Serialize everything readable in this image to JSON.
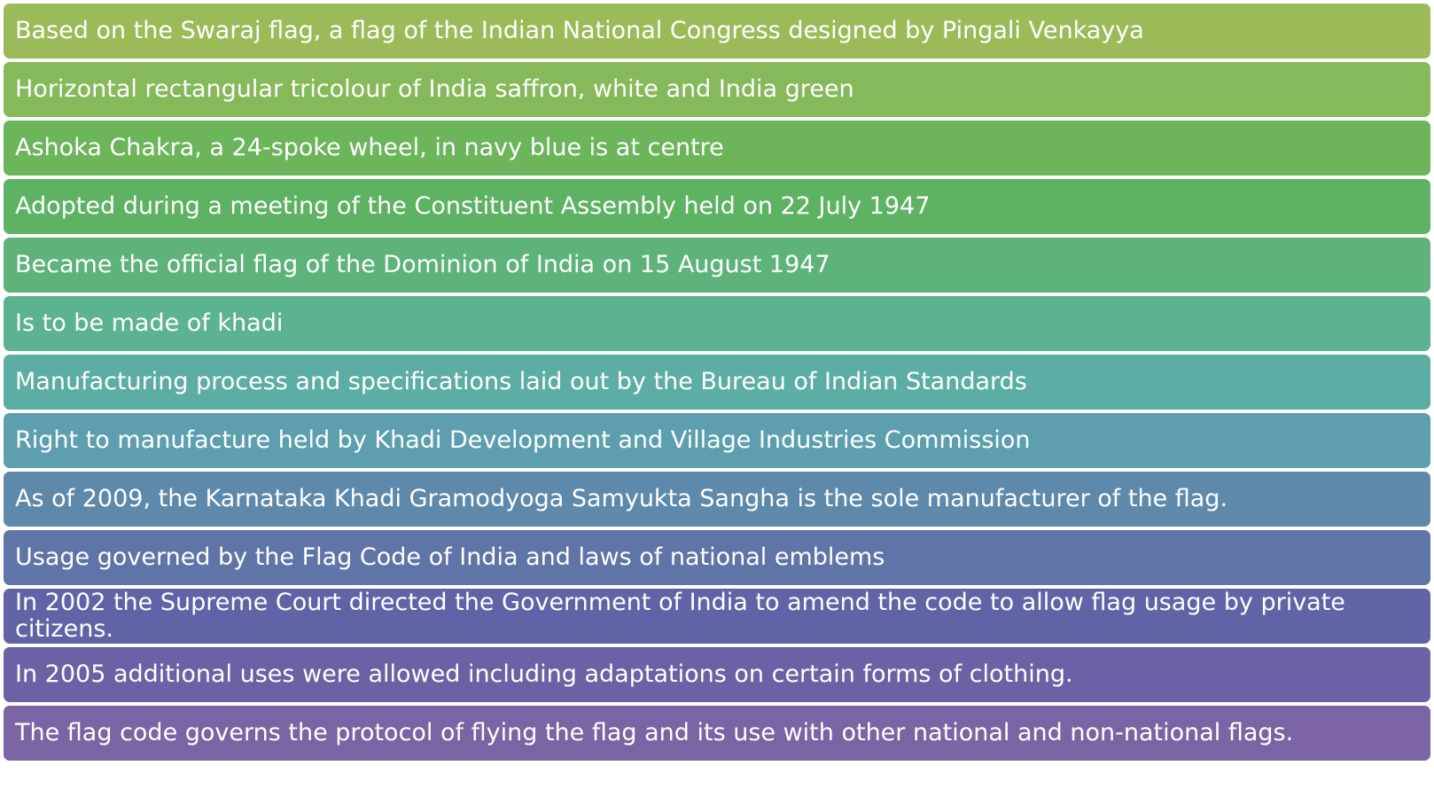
{
  "items": [
    {
      "text": "Based on the Swaraj flag, a flag of the Indian National Congress designed by Pingali Venkayya",
      "color": "#9bbb59"
    },
    {
      "text": "Horizontal rectangular tricolour of India saffron, white and India green",
      "color": "#85b95a"
    },
    {
      "text": "Ashoka Chakra, a 24-spoke wheel, in navy blue is at centre",
      "color": "#6cb55b"
    },
    {
      "text": "Adopted during a meeting of the Constituent Assembly held on 22 July 1947",
      "color": "#5db363"
    },
    {
      "text": "Became the official flag of the Dominion of India on 15 August 1947",
      "color": "#5db37a"
    },
    {
      "text": "Is to be made of khadi",
      "color": "#5cb38f"
    },
    {
      "text": "Manufacturing process and specifications laid out by the Bureau of Indian Standards",
      "color": "#5caea4"
    },
    {
      "text": "Right to manufacture held by Khadi Development and Village Industries Commission",
      "color": "#5d9faf"
    },
    {
      "text": "As of 2009, the Karnataka Khadi Gramodyoga Samyukta Sangha is the sole manufacturer of the flag.",
      "color": "#5e89ab"
    },
    {
      "text": "Usage governed by the Flag Code of India and laws of national emblems",
      "color": "#5f75a8"
    },
    {
      "text": "In 2002 the Supreme Court directed the Government of India to amend the code to allow flag usage by private citizens.",
      "color": "#6064a6"
    },
    {
      "text": "In 2005 additional uses were allowed including adaptations on certain forms of clothing.",
      "color": "#6b62a5"
    },
    {
      "text": "The flag code governs the protocol of flying the flag and its use with other national and non-national flags.",
      "color": "#7b64a3"
    }
  ]
}
